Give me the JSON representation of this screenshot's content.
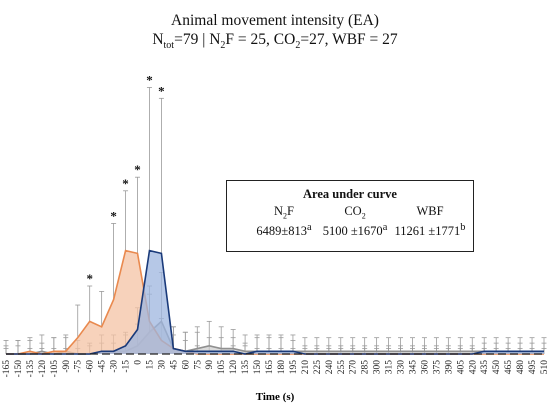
{
  "chart_data": {
    "type": "area",
    "title": "Animal movement intensity (EA)",
    "subtitle": {
      "n_tot_label": "N",
      "n_tot_sub": "tot",
      "n_tot_value": "=79",
      "n2f_label": "N",
      "n2f_sub": "2",
      "n2f_value": "F = 25,",
      "co2_label": "CO",
      "co2_sub": "2",
      "co2_value": "=27,",
      "wbf_text": "WBF = 27",
      "separator": "|"
    },
    "xlabel": "Time (s)",
    "ylabel": "",
    "x": [
      -165,
      -150,
      -135,
      -120,
      -105,
      -90,
      -75,
      -60,
      -45,
      -30,
      -15,
      0,
      15,
      30,
      45,
      60,
      75,
      90,
      105,
      120,
      135,
      150,
      165,
      180,
      195,
      210,
      225,
      240,
      255,
      270,
      285,
      300,
      315,
      330,
      345,
      360,
      375,
      390,
      405,
      420,
      435,
      450,
      465,
      480,
      495,
      510
    ],
    "xticks": [
      "-165",
      "-150",
      "-135",
      "-120",
      "-105",
      "-90",
      "-75",
      "-60",
      "-45",
      "-30",
      "-15",
      "0",
      "15",
      "30",
      "45",
      "60",
      "75",
      "90",
      "105",
      "120",
      "135",
      "150",
      "165",
      "180",
      "195",
      "210",
      "225",
      "240",
      "255",
      "270",
      "285",
      "300",
      "315",
      "330",
      "345",
      "360",
      "375",
      "390",
      "405",
      "420",
      "435",
      "450",
      "465",
      "480",
      "495",
      "510"
    ],
    "ylim": [
      0,
      100
    ],
    "grid": false,
    "series": [
      {
        "name": "N2F",
        "color": "#e9894e",
        "fill": "#f4c3a4",
        "values": [
          0,
          0,
          1,
          0,
          1,
          1,
          6,
          12,
          10,
          20,
          38,
          37,
          12,
          5,
          2,
          1,
          0,
          0,
          0,
          0,
          0,
          0,
          0,
          0,
          0,
          0,
          0,
          0,
          0,
          0,
          0,
          0,
          0,
          0,
          0,
          0,
          0,
          0,
          0,
          0,
          0,
          0,
          0,
          0,
          0,
          0
        ],
        "err": [
          3,
          5,
          5,
          4,
          5,
          5,
          12,
          13,
          13,
          28,
          22,
          28,
          13,
          8,
          5,
          4,
          3,
          3,
          2,
          3,
          3,
          2,
          2,
          2,
          2,
          2,
          2,
          2,
          2,
          2,
          2,
          2,
          2,
          2,
          2,
          2,
          2,
          2,
          2,
          2,
          2,
          2,
          2,
          2,
          2,
          2
        ]
      },
      {
        "name": "CO2",
        "color": "#1a3a7a",
        "fill": "#9db6df",
        "values": [
          0,
          0,
          0,
          0,
          0,
          0,
          0,
          0,
          1,
          1,
          3,
          9,
          38,
          37,
          2,
          1,
          1,
          1,
          1,
          1,
          0,
          1,
          1,
          1,
          1,
          0,
          0,
          0,
          0,
          0,
          0,
          0,
          0,
          0,
          0,
          0,
          0,
          0,
          0,
          0,
          1,
          1,
          1,
          1,
          1,
          1
        ],
        "err": [
          2,
          3,
          2,
          2,
          2,
          2,
          2,
          3,
          3,
          3,
          5,
          8,
          60,
          57,
          8,
          7,
          7,
          5,
          5,
          5,
          4,
          5,
          5,
          5,
          4,
          3,
          3,
          3,
          3,
          3,
          3,
          3,
          3,
          3,
          3,
          3,
          3,
          3,
          3,
          3,
          3,
          3,
          3,
          3,
          3,
          3
        ]
      },
      {
        "name": "WBF",
        "color": "#909090",
        "fill": "#cfcfcf",
        "values": [
          0,
          0,
          0,
          1,
          0,
          1,
          0,
          0,
          1,
          1,
          1,
          3,
          8,
          12,
          2,
          1,
          2,
          3,
          2,
          2,
          1,
          1,
          1,
          1,
          1,
          1,
          1,
          1,
          1,
          1,
          1,
          1,
          1,
          1,
          1,
          1,
          1,
          1,
          1,
          1,
          1,
          1,
          1,
          1,
          1,
          1
        ],
        "err": [
          5,
          5,
          5,
          6,
          6,
          6,
          5,
          4,
          6,
          6,
          6,
          8,
          14,
          18,
          8,
          7,
          8,
          9,
          8,
          7,
          6,
          6,
          6,
          6,
          6,
          5,
          5,
          5,
          5,
          5,
          5,
          5,
          5,
          5,
          5,
          5,
          5,
          5,
          5,
          5,
          5,
          5,
          5,
          5,
          5,
          5
        ]
      }
    ],
    "significance_marker": "*",
    "significance_x": [
      -60,
      -30,
      -15,
      0,
      15,
      30
    ],
    "area_under_curve": {
      "title": "Area under curve",
      "columns": [
        {
          "label": "N",
          "label_sub": "2",
          "label_rest": "F",
          "value": "6489±813",
          "sup": "a"
        },
        {
          "label": "CO",
          "label_sub": "2",
          "label_rest": "",
          "value": "5100 ±1670",
          "sup": "a"
        },
        {
          "label": "WBF",
          "label_sub": "",
          "label_rest": "",
          "value": "11261 ±1771",
          "sup": "b"
        }
      ]
    }
  }
}
